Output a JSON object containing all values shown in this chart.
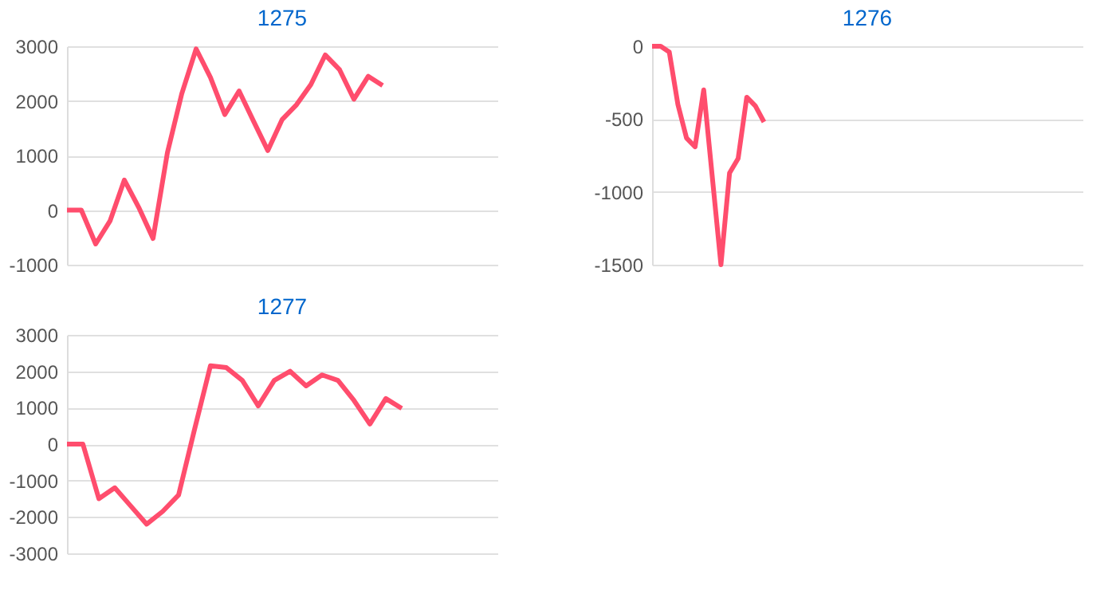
{
  "chart_data": [
    {
      "type": "line",
      "title": "1275",
      "categories": [
        null,
        null,
        null,
        null,
        null,
        null,
        null,
        null,
        null,
        null,
        null,
        null,
        null,
        null,
        null,
        null,
        null,
        null,
        null,
        null,
        null,
        null,
        null,
        null,
        null,
        null,
        null,
        null,
        null,
        null,
        null
      ],
      "series": [
        {
          "color": "#ff4d6d",
          "values": [
            0,
            0,
            -620,
            -200,
            550,
            50,
            -520,
            1050,
            2130,
            2950,
            2430,
            1750,
            2180,
            1630,
            1090,
            1660,
            1930,
            2300,
            2840,
            2570,
            2030,
            2450,
            2280,
            null,
            null,
            null,
            null,
            null,
            null,
            null,
            null
          ]
        }
      ],
      "ylim": [
        -1000,
        3000
      ],
      "yticks": [
        -1000,
        0,
        1000,
        2000,
        3000
      ],
      "grid": "y",
      "tick_labels": "y",
      "marker": "none"
    },
    {
      "type": "line",
      "title": "1276",
      "categories": [
        null,
        null,
        null,
        null,
        null,
        null,
        null,
        null,
        null,
        null,
        null,
        null,
        null,
        null,
        null,
        null,
        null,
        null,
        null,
        null,
        null,
        null,
        null,
        null,
        null,
        null,
        null,
        null,
        null,
        null,
        null,
        null,
        null,
        null,
        null,
        null,
        null,
        null,
        null,
        null,
        null,
        null,
        null,
        null,
        null,
        null,
        null,
        null,
        null,
        null,
        null
      ],
      "series": [
        {
          "color": "#ff4d6d",
          "values": [
            0,
            0,
            -40,
            -400,
            -630,
            -690,
            -300,
            -900,
            -1500,
            -870,
            -770,
            -350,
            -410,
            -520,
            null,
            null,
            null,
            null,
            null,
            null,
            null,
            null,
            null,
            null,
            null,
            null,
            null,
            null,
            null,
            null,
            null,
            null,
            null,
            null,
            null,
            null,
            null,
            null,
            null,
            null,
            null,
            null,
            null,
            null,
            null,
            null,
            null,
            null,
            null,
            null,
            null
          ]
        }
      ],
      "ylim": [
        -1500,
        0
      ],
      "yticks": [
        -1500,
        -1000,
        -500,
        0
      ],
      "grid": "y",
      "tick_labels": "y",
      "marker": "none"
    },
    {
      "type": "line",
      "title": "1277",
      "categories": [
        null,
        null,
        null,
        null,
        null,
        null,
        null,
        null,
        null,
        null,
        null,
        null,
        null,
        null,
        null,
        null,
        null,
        null,
        null,
        null,
        null,
        null,
        null,
        null,
        null,
        null,
        null,
        null
      ],
      "series": [
        {
          "color": "#ff4d6d",
          "values": [
            0,
            0,
            -1500,
            -1200,
            -1700,
            -2200,
            -1850,
            -1400,
            400,
            2150,
            2100,
            1750,
            1050,
            1750,
            2000,
            1600,
            1900,
            1750,
            1200,
            550,
            1250,
            980,
            null,
            null,
            null,
            null,
            null,
            null
          ]
        }
      ],
      "ylim": [
        -3000,
        3000
      ],
      "yticks": [
        -3000,
        -2000,
        -1000,
        0,
        1000,
        2000,
        3000
      ],
      "grid": "y",
      "tick_labels": "y",
      "marker": "none"
    }
  ]
}
